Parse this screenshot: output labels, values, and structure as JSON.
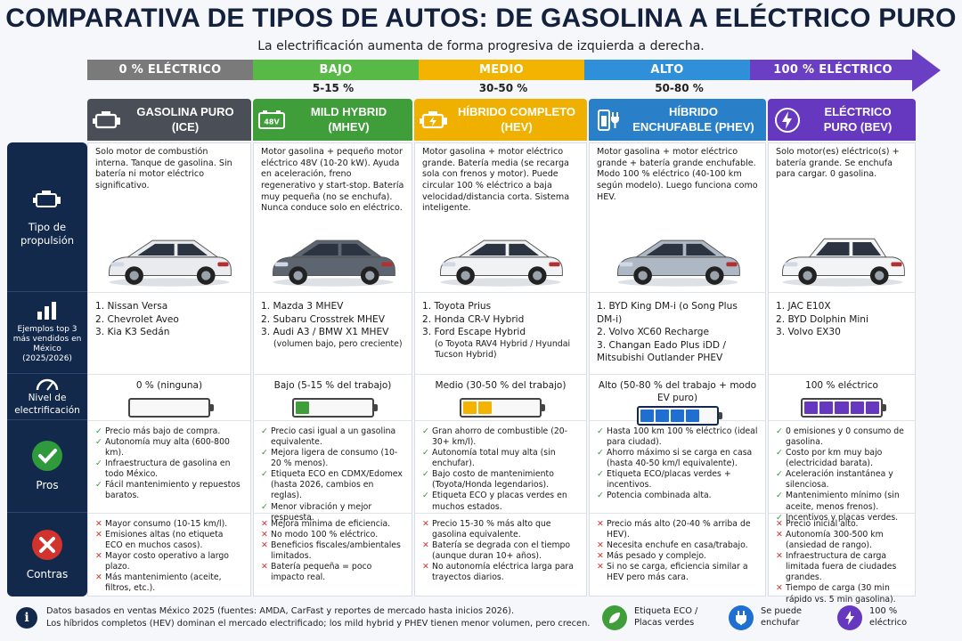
{
  "title": "COMPARATIVA DE TIPOS DE AUTOS: DE GASOLINA A ELÉCTRICO PURO",
  "subtitle": "La electrificación aumenta de forma progresiva de izquierda a derecha.",
  "scale": [
    {
      "label": "0 % ELÉCTRICO",
      "color": "#7a7a7a"
    },
    {
      "label": "BAJO",
      "color": "#58b947",
      "range": "5-15 %"
    },
    {
      "label": "MEDIO",
      "color": "#f2b400",
      "range": "30-50 %"
    },
    {
      "label": "ALTO",
      "color": "#2f8fd8",
      "range": "50-80 %"
    },
    {
      "label": "100 % ELÉCTRICO",
      "color": "#6b3fc4"
    }
  ],
  "rows": {
    "propulsion": "Tipo de propulsión",
    "examples": "Ejemplos top 3 más vendidos en México (2025/2026)",
    "level": "Nivel de electrificación",
    "pros": "Pros",
    "cons": "Contras"
  },
  "columns": [
    {
      "title": "GASOLINA PURO (ICE)",
      "color": "#4a4f57",
      "icon": "engine-icon",
      "propulsion": "Solo motor de combustión interna. Tanque de gasolina. Sin batería ni motor eléctrico significativo.",
      "car_color": "#e9ebee",
      "examples": [
        "1. Nissan Versa",
        "2. Chevrolet Aveo",
        "3. Kia K3 Sedán"
      ],
      "level_label": "0 % (ninguna)",
      "battery_fill": 0,
      "battery_color": "#9aa0a6",
      "pros": [
        "Precio más bajo de compra.",
        "Autonomía muy alta (600-800 km).",
        "Infraestructura de gasolina en todo México.",
        "Fácil mantenimiento y repuestos baratos."
      ],
      "cons": [
        "Mayor consumo (10-15 km/l).",
        "Emisiones altas (no etiqueta ECO en muchos casos).",
        "Mayor costo operativo a largo plazo.",
        "Más mantenimiento (aceite, filtros, etc.)."
      ]
    },
    {
      "title": "MILD HYBRID (MHEV)",
      "color": "#3f9d3a",
      "icon": "battery-48v-icon",
      "propulsion": "Motor gasolina + pequeño motor eléctrico 48V (10-20 kW). Ayuda en aceleración, freno regenerativo y start-stop. Batería muy pequeña (no se enchufa). Nunca conduce solo en eléctrico.",
      "car_color": "#5d6570",
      "examples": [
        "1. Mazda 3 MHEV",
        "2. Subaru Crosstrek MHEV",
        "3. Audi A3 / BMW X1 MHEV",
        "(volumen bajo, pero creciente)"
      ],
      "level_label": "Bajo (5-15 % del trabajo)",
      "battery_fill": 0.2,
      "battery_color": "#3f9d3a",
      "pros": [
        "Precio casi igual a un gasolina equivalente.",
        "Mejora ligera de consumo (10-20 % menos).",
        "Etiqueta ECO en CDMX/Edomex (hasta 2026, cambios en reglas).",
        "Menor vibración y mejor respuesta."
      ],
      "cons": [
        "Mejora mínima de eficiencia.",
        "No modo 100 % eléctrico.",
        "Beneficios fiscales/ambientales limitados.",
        "Batería pequeña = poco impacto real."
      ]
    },
    {
      "title": "HÍBRIDO COMPLETO (HEV)",
      "color": "#f0b000",
      "icon": "hybrid-engine-icon",
      "propulsion": "Motor gasolina + motor eléctrico grande. Batería media (se recarga sola con frenos y motor). Puede circular 100 % eléctrico a baja velocidad/distancia corta. Sistema inteligente.",
      "car_color": "#f1f2f4",
      "examples": [
        "1. Toyota Prius",
        "2. Honda CR-V Hybrid",
        "3. Ford Escape Hybrid",
        "(o Toyota RAV4 Hybrid / Hyundai Tucson Hybrid)"
      ],
      "level_label": "Medio (30-50 % del trabajo)",
      "battery_fill": 0.4,
      "battery_color": "#f2b400",
      "pros": [
        "Gran ahorro de combustible (20-30+ km/l).",
        "Autonomía total muy alta (sin enchufar).",
        "Bajo costo de mantenimiento (Toyota/Honda legendarios).",
        "Etiqueta ECO y placas verdes en muchos estados."
      ],
      "cons": [
        "Precio 15-30 % más alto que gasolina equivalente.",
        "Batería se degrada con el tiempo (aunque duran 10+ años).",
        "No autonomía eléctrica larga para trayectos diarios."
      ]
    },
    {
      "title": "HÍBRIDO ENCHUFABLE (PHEV)",
      "color": "#2a7fc9",
      "icon": "phone-plug-icon",
      "propulsion": "Motor gasolina + motor eléctrico grande + batería grande enchufable. Modo 100 % eléctrico (40-100 km según modelo). Luego funciona como HEV.",
      "car_color": "#aeb8c4",
      "examples": [
        "1. BYD King DM-i (o Song Plus DM-i)",
        "2. Volvo XC60 Recharge",
        "3. Changan Eado Plus iDD / Mitsubishi Outlander PHEV"
      ],
      "level_label": "Alto (50-80 % del trabajo + modo EV puro)",
      "battery_fill": 0.8,
      "battery_color": "#1f6fd0",
      "pros": [
        "Hasta 100 km 100 % eléctrico (ideal para ciudad).",
        "Ahorro máximo si se carga en casa (hasta 40-50 km/l equivalente).",
        "Etiqueta ECO/placas verdes + incentivos.",
        "Potencia combinada alta."
      ],
      "cons": [
        "Precio más alto (20-40 % arriba de HEV).",
        "Necesita enchufe en casa/trabajo.",
        "Más pesado y complejo.",
        "Si no se carga, eficiencia similar a HEV pero más cara."
      ]
    },
    {
      "title": "ELÉCTRICO PURO (BEV)",
      "color": "#6638c0",
      "icon": "lightning-icon",
      "propulsion": "Solo motor(es) eléctrico(s) + batería grande. Se enchufa para cargar. 0 gasolina.",
      "car_color": "#f3f4f6",
      "examples": [
        "1. JAC E10X",
        "2. BYD Dolphin Mini",
        "3. Volvo EX30"
      ],
      "level_label": "100 % eléctrico",
      "battery_fill": 1,
      "battery_color": "#6638c0",
      "pros": [
        "0 emisiones y 0 consumo de gasolina.",
        "Costo por km muy bajo (electricidad barata).",
        "Aceleración instantánea y silenciosa.",
        "Mantenimiento mínimo (sin aceite, menos frenos).",
        "Incentivos y placas verdes."
      ],
      "cons": [
        "Precio inicial alto.",
        "Autonomía 300-500 km (ansiedad de rango).",
        "Infraestructura de carga limitada fuera de ciudades grandes.",
        "Tiempo de carga (30 min rápido vs. 5 min gasolina)."
      ]
    }
  ],
  "footer": {
    "note_line1": "Datos basados en ventas México 2025 (fuentes: AMDA, CarFast y reportes de mercado hasta inicios 2026).",
    "note_line2": "Los híbridos completos (HEV) dominan el mercado electrificado; los mild hybrid y PHEV tienen menor volumen, pero crecen.",
    "legend": [
      {
        "label": "Etiqueta ECO / Placas verdes",
        "color": "#3f9d3a",
        "icon": "leaf-icon"
      },
      {
        "label": "Se puede enchufar",
        "color": "#1f6fd0",
        "icon": "plug-icon"
      },
      {
        "label": "100 % eléctrico",
        "color": "#6638c0",
        "icon": "lightning-icon"
      }
    ]
  }
}
